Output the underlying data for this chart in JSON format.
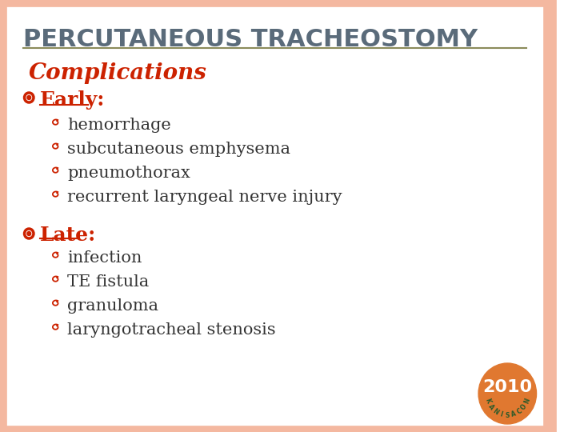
{
  "title": "PERCUTANEOUS TRACHEOSTOMY",
  "title_color": "#5a6b7a",
  "title_fontsize": 22,
  "bg_color": "#ffffff",
  "border_color": "#f4b8a0",
  "line_color": "#8b8b5a",
  "complications_text": "Complications",
  "complications_color": "#cc2200",
  "complications_fontsize": 20,
  "early_text": "Early:",
  "early_color": "#cc2200",
  "early_fontsize": 18,
  "late_text": "Late:",
  "late_color": "#cc2200",
  "late_fontsize": 18,
  "bullet_color": "#cc2200",
  "text_color": "#333333",
  "body_fontsize": 15,
  "early_items": [
    "hemorrhage",
    "subcutaneous emphysema",
    "pneumothorax",
    "recurrent laryngeal nerve injury"
  ],
  "late_items": [
    "infection",
    "TE fistula",
    "granuloma",
    "laryngotracheal stenosis"
  ],
  "badge_color": "#e07830",
  "badge_text": "2010",
  "badge_subtext": "KANISACON",
  "badge_text_color": "#ffffff",
  "badge_subtext_color": "#2a5a2a"
}
